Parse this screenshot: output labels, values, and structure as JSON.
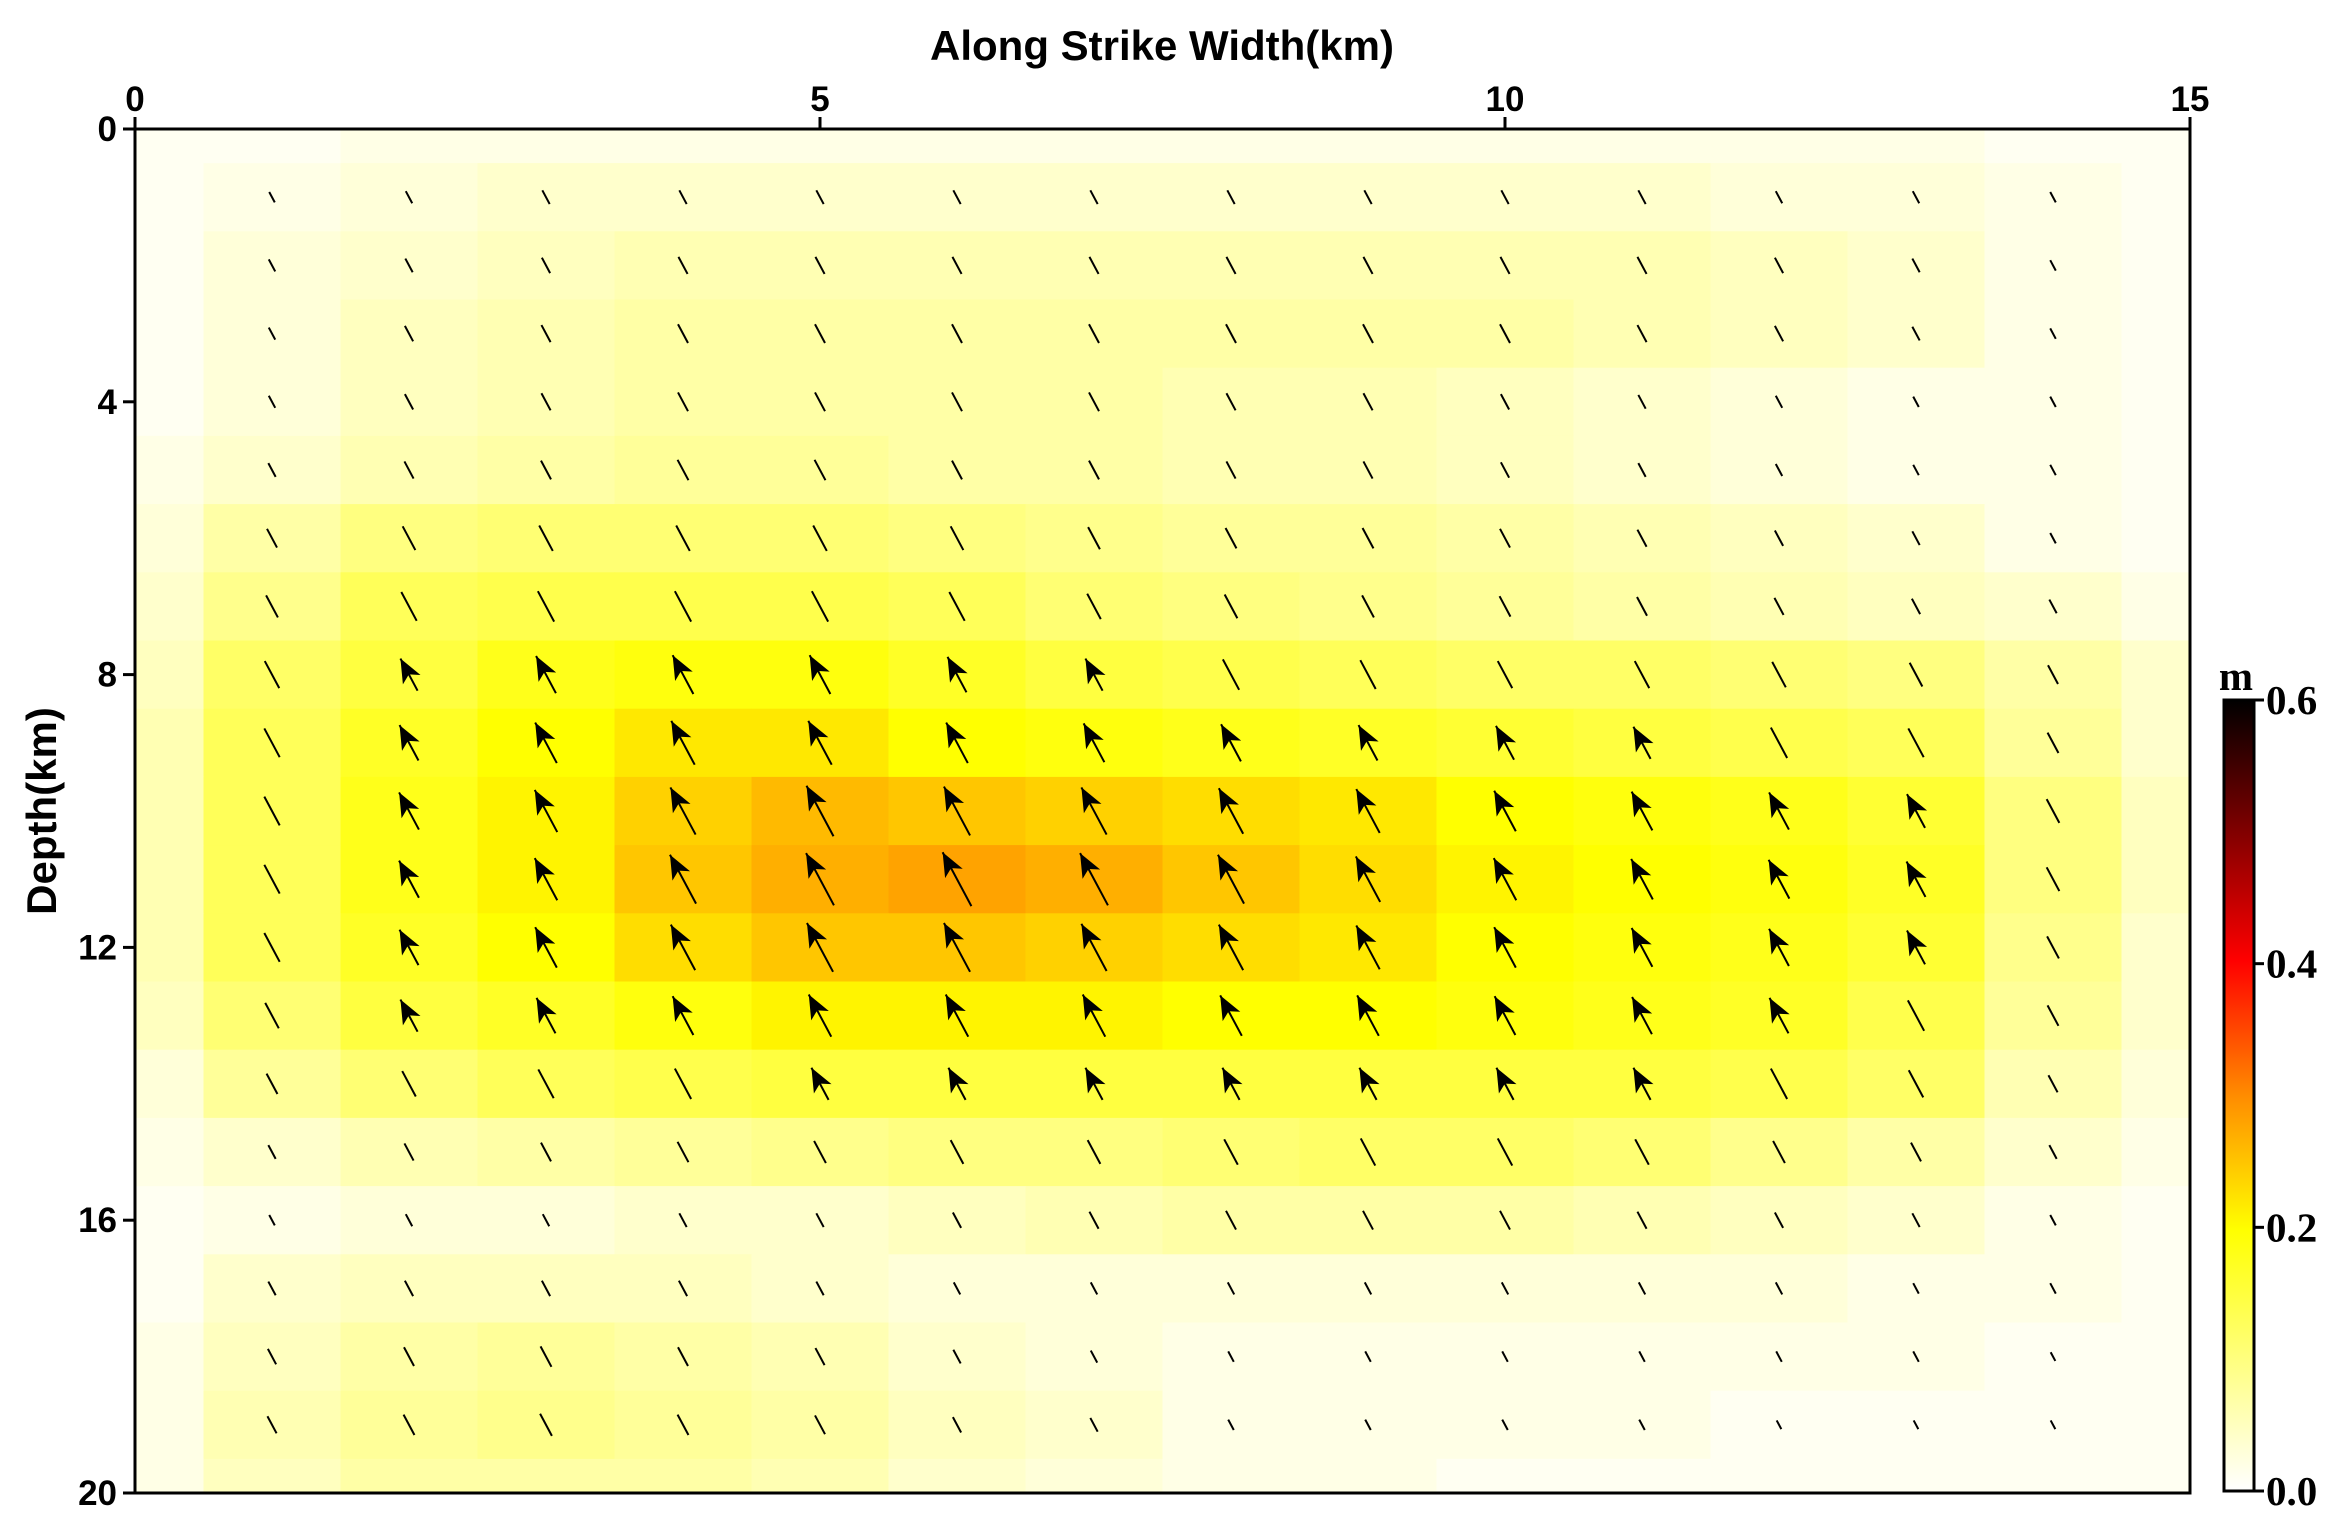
{
  "chart_data": {
    "type": "heatmap",
    "xlabel": "Along Strike Width(km)",
    "ylabel": "Depth(km)",
    "xlim": [
      0,
      15
    ],
    "ylim": [
      0,
      20
    ],
    "y_inverted": true,
    "x_axis_position": "top",
    "x_ticks": [
      "0",
      "5",
      "10",
      "15"
    ],
    "y_ticks": [
      "0",
      "4",
      "8",
      "12",
      "16",
      "20"
    ],
    "x_tick_values": [
      0,
      5,
      10,
      15
    ],
    "y_tick_values": [
      0,
      4,
      8,
      12,
      16,
      20
    ],
    "cell_x_edges": [
      0,
      0.5,
      1.5,
      2.5,
      3.5,
      4.5,
      5.5,
      6.5,
      7.5,
      8.5,
      9.5,
      10.5,
      11.5,
      12.5,
      13.5,
      14.5,
      15
    ],
    "cell_y_edges": [
      0,
      0.5,
      1.5,
      2.5,
      3.5,
      4.5,
      5.5,
      6.5,
      7.5,
      8.5,
      9.5,
      10.5,
      11.5,
      12.5,
      13.5,
      14.5,
      15.5,
      16.5,
      17.5,
      18.5,
      19.5,
      20
    ],
    "slip": [
      [
        0.01,
        0.01,
        0.02,
        0.02,
        0.02,
        0.02,
        0.02,
        0.02,
        0.02,
        0.02,
        0.02,
        0.02,
        0.02,
        0.02,
        0.01,
        0.01
      ],
      [
        0.01,
        0.02,
        0.03,
        0.04,
        0.04,
        0.04,
        0.04,
        0.04,
        0.04,
        0.04,
        0.04,
        0.04,
        0.03,
        0.03,
        0.02,
        0.01
      ],
      [
        0.01,
        0.03,
        0.04,
        0.05,
        0.06,
        0.06,
        0.06,
        0.06,
        0.06,
        0.06,
        0.06,
        0.06,
        0.05,
        0.04,
        0.02,
        0.01
      ],
      [
        0.01,
        0.03,
        0.05,
        0.06,
        0.07,
        0.07,
        0.07,
        0.07,
        0.07,
        0.07,
        0.07,
        0.06,
        0.05,
        0.04,
        0.02,
        0.01
      ],
      [
        0.01,
        0.03,
        0.05,
        0.06,
        0.07,
        0.07,
        0.07,
        0.07,
        0.06,
        0.06,
        0.05,
        0.04,
        0.03,
        0.02,
        0.02,
        0.01
      ],
      [
        0.02,
        0.04,
        0.06,
        0.07,
        0.08,
        0.08,
        0.07,
        0.07,
        0.06,
        0.06,
        0.05,
        0.04,
        0.03,
        0.02,
        0.02,
        0.01
      ],
      [
        0.03,
        0.07,
        0.1,
        0.11,
        0.11,
        0.11,
        0.1,
        0.09,
        0.08,
        0.08,
        0.07,
        0.06,
        0.05,
        0.04,
        0.02,
        0.01
      ],
      [
        0.04,
        0.09,
        0.13,
        0.14,
        0.14,
        0.14,
        0.13,
        0.11,
        0.1,
        0.09,
        0.08,
        0.07,
        0.06,
        0.05,
        0.04,
        0.02
      ],
      [
        0.05,
        0.12,
        0.15,
        0.18,
        0.19,
        0.19,
        0.17,
        0.15,
        0.14,
        0.13,
        0.12,
        0.12,
        0.11,
        0.1,
        0.07,
        0.04
      ],
      [
        0.06,
        0.13,
        0.17,
        0.2,
        0.22,
        0.22,
        0.2,
        0.19,
        0.18,
        0.17,
        0.16,
        0.15,
        0.14,
        0.13,
        0.08,
        0.04
      ],
      [
        0.06,
        0.13,
        0.18,
        0.21,
        0.24,
        0.26,
        0.25,
        0.24,
        0.23,
        0.22,
        0.2,
        0.19,
        0.18,
        0.16,
        0.1,
        0.05
      ],
      [
        0.06,
        0.13,
        0.18,
        0.21,
        0.25,
        0.27,
        0.28,
        0.27,
        0.25,
        0.23,
        0.21,
        0.2,
        0.19,
        0.17,
        0.1,
        0.05
      ],
      [
        0.06,
        0.13,
        0.17,
        0.2,
        0.23,
        0.25,
        0.25,
        0.24,
        0.23,
        0.22,
        0.2,
        0.19,
        0.18,
        0.16,
        0.09,
        0.04
      ],
      [
        0.05,
        0.11,
        0.15,
        0.17,
        0.19,
        0.21,
        0.21,
        0.21,
        0.2,
        0.2,
        0.19,
        0.18,
        0.17,
        0.14,
        0.08,
        0.04
      ],
      [
        0.03,
        0.08,
        0.11,
        0.13,
        0.14,
        0.15,
        0.15,
        0.15,
        0.15,
        0.15,
        0.15,
        0.15,
        0.14,
        0.12,
        0.06,
        0.03
      ],
      [
        0.02,
        0.04,
        0.06,
        0.07,
        0.08,
        0.09,
        0.1,
        0.1,
        0.11,
        0.12,
        0.12,
        0.11,
        0.09,
        0.07,
        0.04,
        0.02
      ],
      [
        0.01,
        0.02,
        0.03,
        0.03,
        0.04,
        0.04,
        0.05,
        0.06,
        0.07,
        0.07,
        0.07,
        0.06,
        0.05,
        0.04,
        0.02,
        0.01
      ],
      [
        0.01,
        0.04,
        0.05,
        0.05,
        0.05,
        0.04,
        0.03,
        0.03,
        0.03,
        0.03,
        0.03,
        0.03,
        0.03,
        0.02,
        0.02,
        0.01
      ],
      [
        0.02,
        0.05,
        0.07,
        0.08,
        0.07,
        0.06,
        0.04,
        0.03,
        0.02,
        0.02,
        0.02,
        0.02,
        0.02,
        0.02,
        0.01,
        0.01
      ],
      [
        0.02,
        0.06,
        0.08,
        0.09,
        0.08,
        0.07,
        0.05,
        0.04,
        0.02,
        0.02,
        0.02,
        0.02,
        0.01,
        0.01,
        0.01,
        0.01
      ],
      [
        0.02,
        0.05,
        0.07,
        0.07,
        0.07,
        0.06,
        0.04,
        0.03,
        0.02,
        0.02,
        0.01,
        0.01,
        0.01,
        0.01,
        0.01,
        0.01
      ]
    ],
    "colorbar": {
      "label": "m",
      "min": 0.0,
      "max": 0.6,
      "ticks": [
        "0.0",
        "0.2",
        "0.4",
        "0.6"
      ],
      "tick_values": [
        0.0,
        0.2,
        0.4,
        0.6
      ],
      "colormap": [
        "#ffffff",
        "#ffff00",
        "#ff8800",
        "#ff0000",
        "#000000"
      ]
    },
    "vectors": {
      "description": "slip direction arrows at each subfault centre",
      "direction": "up-left (rake)"
    }
  }
}
